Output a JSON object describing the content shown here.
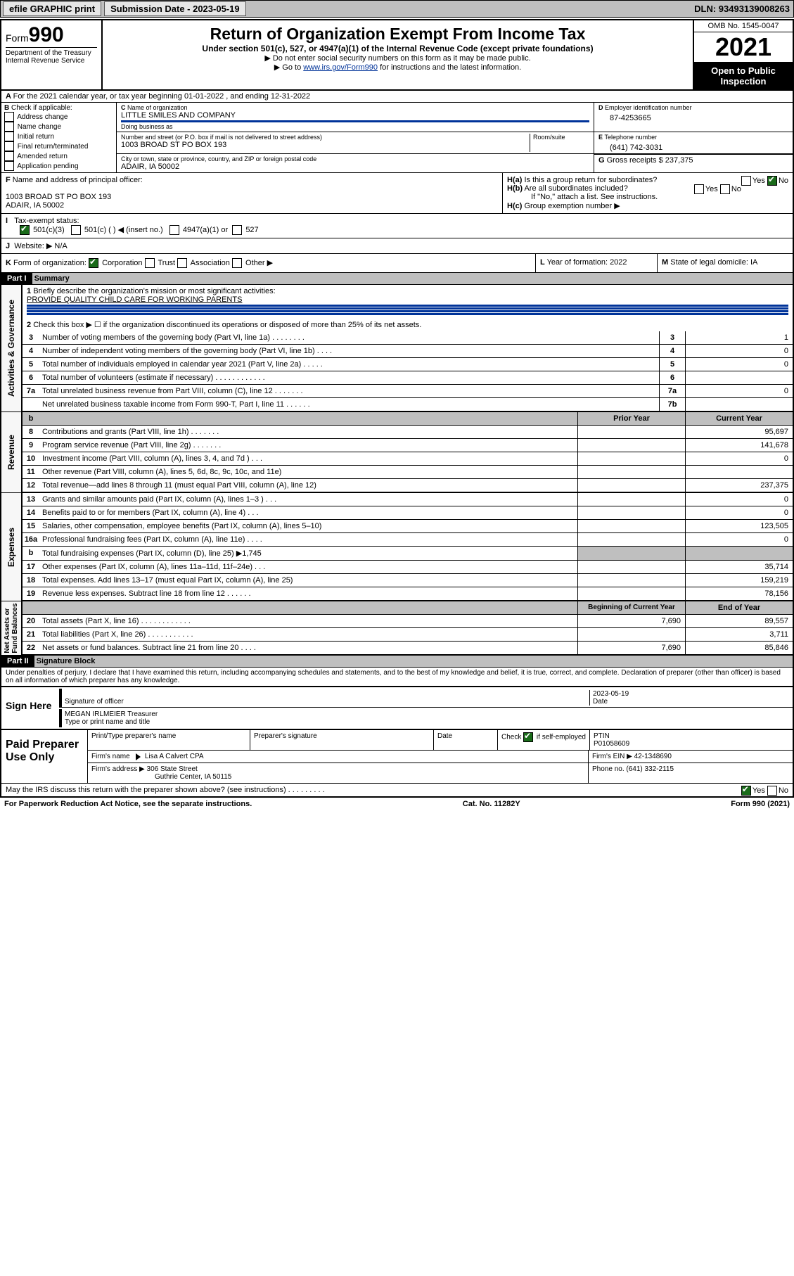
{
  "topbar": {
    "efile": "efile GRAPHIC print",
    "submission": "Submission Date - 2023-05-19",
    "dln": "DLN: 93493139008263"
  },
  "header": {
    "form_prefix": "Form",
    "form_no": "990",
    "title": "Return of Organization Exempt From Income Tax",
    "subtitle": "Under section 501(c), 527, or 4947(a)(1) of the Internal Revenue Code (except private foundations)",
    "note1": "▶ Do not enter social security numbers on this form as it may be made public.",
    "note2_pre": "▶ Go to ",
    "note2_link": "www.irs.gov/Form990",
    "note2_post": " for instructions and the latest information.",
    "dept": "Department of the Treasury",
    "irs": "Internal Revenue Service",
    "omb": "OMB No. 1545-0047",
    "year": "2021",
    "open": "Open to Public Inspection"
  },
  "A": {
    "text": "For the 2021 calendar year, or tax year beginning 01-01-2022   , and ending 12-31-2022"
  },
  "B": {
    "hdr": "Check if applicable:",
    "items": [
      "Address change",
      "Name change",
      "Initial return",
      "Final return/terminated",
      "Amended return",
      "Application pending"
    ]
  },
  "C": {
    "name_lbl": "Name of organization",
    "name": "LITTLE SMILES AND COMPANY",
    "dba_lbl": "Doing business as",
    "dba": "",
    "addr_lbl": "Number and street (or P.O. box if mail is not delivered to street address)",
    "room_lbl": "Room/suite",
    "addr": "1003 BROAD ST PO BOX 193",
    "city_lbl": "City or town, state or province, country, and ZIP or foreign postal code",
    "city": "ADAIR, IA  50002"
  },
  "D": {
    "lbl": "Employer identification number",
    "val": "87-4253665"
  },
  "E": {
    "lbl": "Telephone number",
    "val": "(641) 742-3031"
  },
  "G": {
    "lbl": "Gross receipts $",
    "val": "237,375"
  },
  "F": {
    "lbl": "Name and address of principal officer:",
    "addr1": "1003 BROAD ST PO BOX 193",
    "addr2": "ADAIR, IA  50002"
  },
  "H": {
    "a": "Is this a group return for subordinates?",
    "b": "Are all subordinates included?",
    "b2": "If \"No,\" attach a list. See instructions.",
    "c": "Group exemption number ▶"
  },
  "I": {
    "lbl": "Tax-exempt status:",
    "o1": "501(c)(3)",
    "o2": "501(c) (  ) ◀ (insert no.)",
    "o3": "4947(a)(1) or",
    "o4": "527"
  },
  "J": {
    "lbl": "Website: ▶",
    "val": "N/A"
  },
  "K": {
    "lbl": "Form of organization:",
    "o1": "Corporation",
    "o2": "Trust",
    "o3": "Association",
    "o4": "Other ▶"
  },
  "L": {
    "lbl": "Year of formation:",
    "val": "2022"
  },
  "M": {
    "lbl": "State of legal domicile:",
    "val": "IA"
  },
  "part1": {
    "hdr": "Part I",
    "title": "Summary",
    "q1": "Briefly describe the organization's mission or most significant activities:",
    "mission": "PROVIDE QUALITY CHILD CARE FOR WORKING PARENTS",
    "q2": "Check this box ▶ ☐  if the organization discontinued its operations or disposed of more than 25% of its net assets.",
    "rows_gov": [
      {
        "n": "3",
        "d": "Number of voting members of the governing body (Part VI, line 1a)   .   .   .   .   .   .   .   .",
        "box": "3",
        "v": "1"
      },
      {
        "n": "4",
        "d": "Number of independent voting members of the governing body (Part VI, line 1b)  .   .   .   .",
        "box": "4",
        "v": "0"
      },
      {
        "n": "5",
        "d": "Total number of individuals employed in calendar year 2021 (Part V, line 2a)  .   .   .   .   .",
        "box": "5",
        "v": "0"
      },
      {
        "n": "6",
        "d": "Total number of volunteers (estimate if necessary)  .   .   .   .   .   .   .   .   .   .   .   .",
        "box": "6",
        "v": ""
      },
      {
        "n": "7a",
        "d": "Total unrelated business revenue from Part VIII, column (C), line 12  .   .   .   .   .   .   .",
        "box": "7a",
        "v": "0"
      },
      {
        "n": "",
        "d": "Net unrelated business taxable income from Form 990-T, Part I, line 11  .   .   .   .   .   .",
        "box": "7b",
        "v": ""
      }
    ],
    "col_py": "Prior Year",
    "col_cy": "Current Year",
    "rows_rev": [
      {
        "n": "8",
        "d": "Contributions and grants (Part VIII, line 1h)   .   .   .   .   .   .   .",
        "py": "",
        "cy": "95,697"
      },
      {
        "n": "9",
        "d": "Program service revenue (Part VIII, line 2g)   .   .   .   .   .   .   .",
        "py": "",
        "cy": "141,678"
      },
      {
        "n": "10",
        "d": "Investment income (Part VIII, column (A), lines 3, 4, and 7d )   .   .   .",
        "py": "",
        "cy": "0"
      },
      {
        "n": "11",
        "d": "Other revenue (Part VIII, column (A), lines 5, 6d, 8c, 9c, 10c, and 11e)",
        "py": "",
        "cy": ""
      },
      {
        "n": "12",
        "d": "Total revenue—add lines 8 through 11 (must equal Part VIII, column (A), line 12)",
        "py": "",
        "cy": "237,375"
      }
    ],
    "rows_exp": [
      {
        "n": "13",
        "d": "Grants and similar amounts paid (Part IX, column (A), lines 1–3 )   .   .   .",
        "py": "",
        "cy": "0"
      },
      {
        "n": "14",
        "d": "Benefits paid to or for members (Part IX, column (A), line 4)  .   .   .",
        "py": "",
        "cy": "0"
      },
      {
        "n": "15",
        "d": "Salaries, other compensation, employee benefits (Part IX, column (A), lines 5–10)",
        "py": "",
        "cy": "123,505"
      },
      {
        "n": "16a",
        "d": "Professional fundraising fees (Part IX, column (A), line 11e)  .   .   .   .",
        "py": "",
        "cy": "0"
      },
      {
        "n": "b",
        "d": "Total fundraising expenses (Part IX, column (D), line 25) ▶1,745",
        "py": "grey",
        "cy": "grey"
      },
      {
        "n": "17",
        "d": "Other expenses (Part IX, column (A), lines 11a–11d, 11f–24e)  .   .   .",
        "py": "",
        "cy": "35,714"
      },
      {
        "n": "18",
        "d": "Total expenses. Add lines 13–17 (must equal Part IX, column (A), line 25)",
        "py": "",
        "cy": "159,219"
      },
      {
        "n": "19",
        "d": "Revenue less expenses. Subtract line 18 from line 12  .   .   .   .   .   .",
        "py": "",
        "cy": "78,156"
      }
    ],
    "col_boy": "Beginning of Current Year",
    "col_eoy": "End of Year",
    "rows_na": [
      {
        "n": "20",
        "d": "Total assets (Part X, line 16)  .   .   .   .   .   .   .   .   .   .   .   .",
        "py": "7,690",
        "cy": "89,557"
      },
      {
        "n": "21",
        "d": "Total liabilities (Part X, line 26)  .   .   .   .   .   .   .   .   .   .   .",
        "py": "",
        "cy": "3,711"
      },
      {
        "n": "22",
        "d": "Net assets or fund balances. Subtract line 21 from line 20  .   .   .   .",
        "py": "7,690",
        "cy": "85,846"
      }
    ]
  },
  "part2": {
    "hdr": "Part II",
    "title": "Signature Block",
    "decl": "Under penalties of perjury, I declare that I have examined this return, including accompanying schedules and statements, and to the best of my knowledge and belief, it is true, correct, and complete. Declaration of preparer (other than officer) is based on all information of which preparer has any knowledge."
  },
  "sign": {
    "here": "Sign Here",
    "sig_lbl": "Signature of officer",
    "date_lbl": "Date",
    "date": "2023-05-19",
    "name": "MEGAN IRLMEIER  Treasurer",
    "name_lbl": "Type or print name and title"
  },
  "paid": {
    "title": "Paid Preparer Use Only",
    "h1": "Print/Type preparer's name",
    "h2": "Preparer's signature",
    "h3": "Date",
    "h4": "Check",
    "h4b": "if self-employed",
    "h5": "PTIN",
    "ptin": "P01058609",
    "firm_lbl": "Firm's name",
    "firm": "Lisa A Calvert CPA",
    "ein_lbl": "Firm's EIN ▶",
    "ein": "42-1348690",
    "addr_lbl": "Firm's address ▶",
    "addr1": "306 State Street",
    "addr2": "Guthrie Center, IA  50115",
    "ph_lbl": "Phone no.",
    "ph": "(641) 332-2115"
  },
  "footer": {
    "q": "May the IRS discuss this return with the preparer shown above? (see instructions)   .   .   .   .   .   .   .   .   .",
    "pra": "For Paperwork Reduction Act Notice, see the separate instructions.",
    "cat": "Cat. No. 11282Y",
    "form": "Form 990 (2021)"
  }
}
